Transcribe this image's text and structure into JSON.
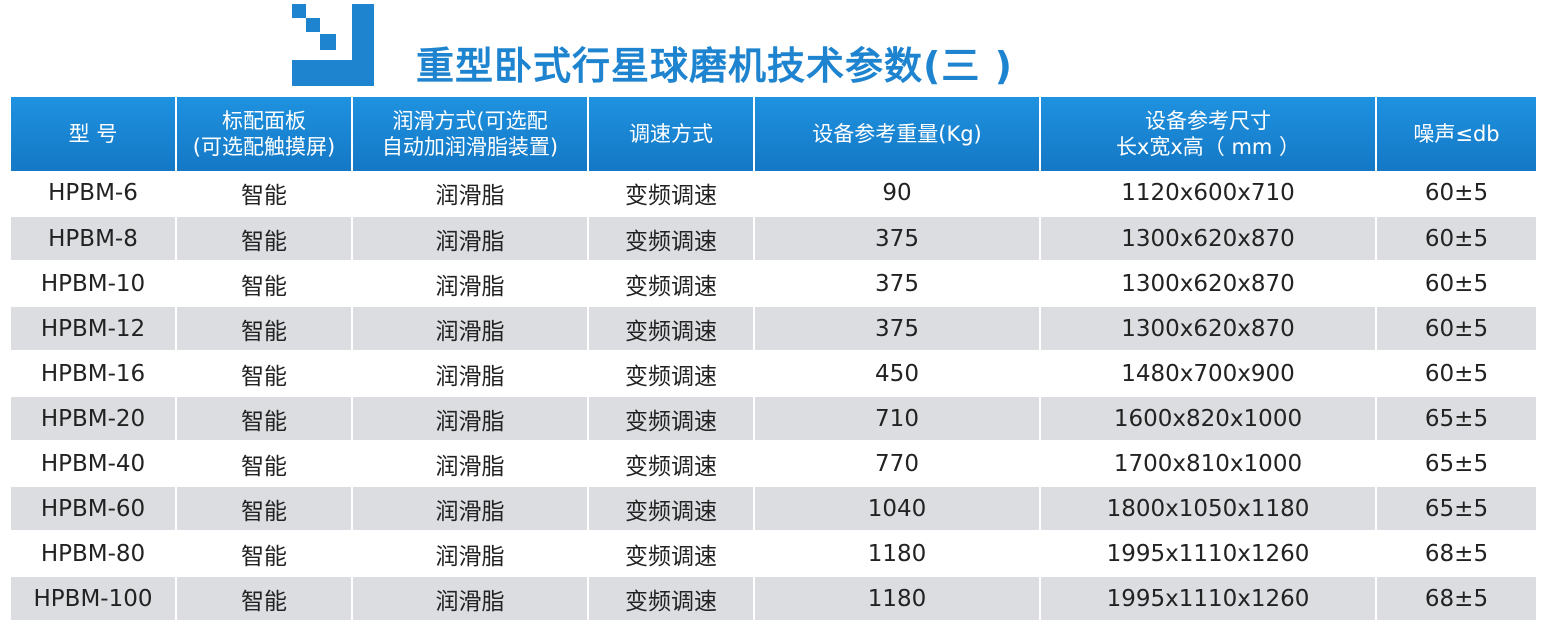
{
  "title": "重型卧式行星球磨机技术参数(三 )",
  "colors": {
    "accent": "#1f84cf",
    "header_bg": "#1a85d6",
    "stripe": "#dcdde0"
  },
  "logo": {
    "icon": "brand-logo-icon"
  },
  "table": {
    "headers": [
      {
        "line1": "型 号",
        "line2": ""
      },
      {
        "line1": "标配面板",
        "line2": "(可选配触摸屏)"
      },
      {
        "line1": "润滑方式(可选配",
        "line2": "自动加润滑脂装置)"
      },
      {
        "line1": "调速方式",
        "line2": ""
      },
      {
        "line1": "设备参考重量(Kg)",
        "line2": ""
      },
      {
        "line1": "设备参考尺寸",
        "line2": "长x宽x高（ mm ）"
      },
      {
        "line1": "噪声≤db",
        "line2": ""
      }
    ],
    "rows": [
      [
        "HPBM-6",
        "智能",
        "润滑脂",
        "变频调速",
        "90",
        "1120x600x710",
        "60±5"
      ],
      [
        "HPBM-8",
        "智能",
        "润滑脂",
        "变频调速",
        "375",
        "1300x620x870",
        "60±5"
      ],
      [
        "HPBM-10",
        "智能",
        "润滑脂",
        "变频调速",
        "375",
        "1300x620x870",
        "60±5"
      ],
      [
        "HPBM-12",
        "智能",
        "润滑脂",
        "变频调速",
        "375",
        "1300x620x870",
        "60±5"
      ],
      [
        "HPBM-16",
        "智能",
        "润滑脂",
        "变频调速",
        "450",
        "1480x700x900",
        "60±5"
      ],
      [
        "HPBM-20",
        "智能",
        "润滑脂",
        "变频调速",
        "710",
        "1600x820x1000",
        "65±5"
      ],
      [
        "HPBM-40",
        "智能",
        "润滑脂",
        "变频调速",
        "770",
        "1700x810x1000",
        "65±5"
      ],
      [
        "HPBM-60",
        "智能",
        "润滑脂",
        "变频调速",
        "1040",
        "1800x1050x1180",
        "65±5"
      ],
      [
        "HPBM-80",
        "智能",
        "润滑脂",
        "变频调速",
        "1180",
        "1995x1110x1260",
        "68±5"
      ],
      [
        "HPBM-100",
        "智能",
        "润滑脂",
        "变频调速",
        "1180",
        "1995x1110x1260",
        "68±5"
      ]
    ]
  }
}
